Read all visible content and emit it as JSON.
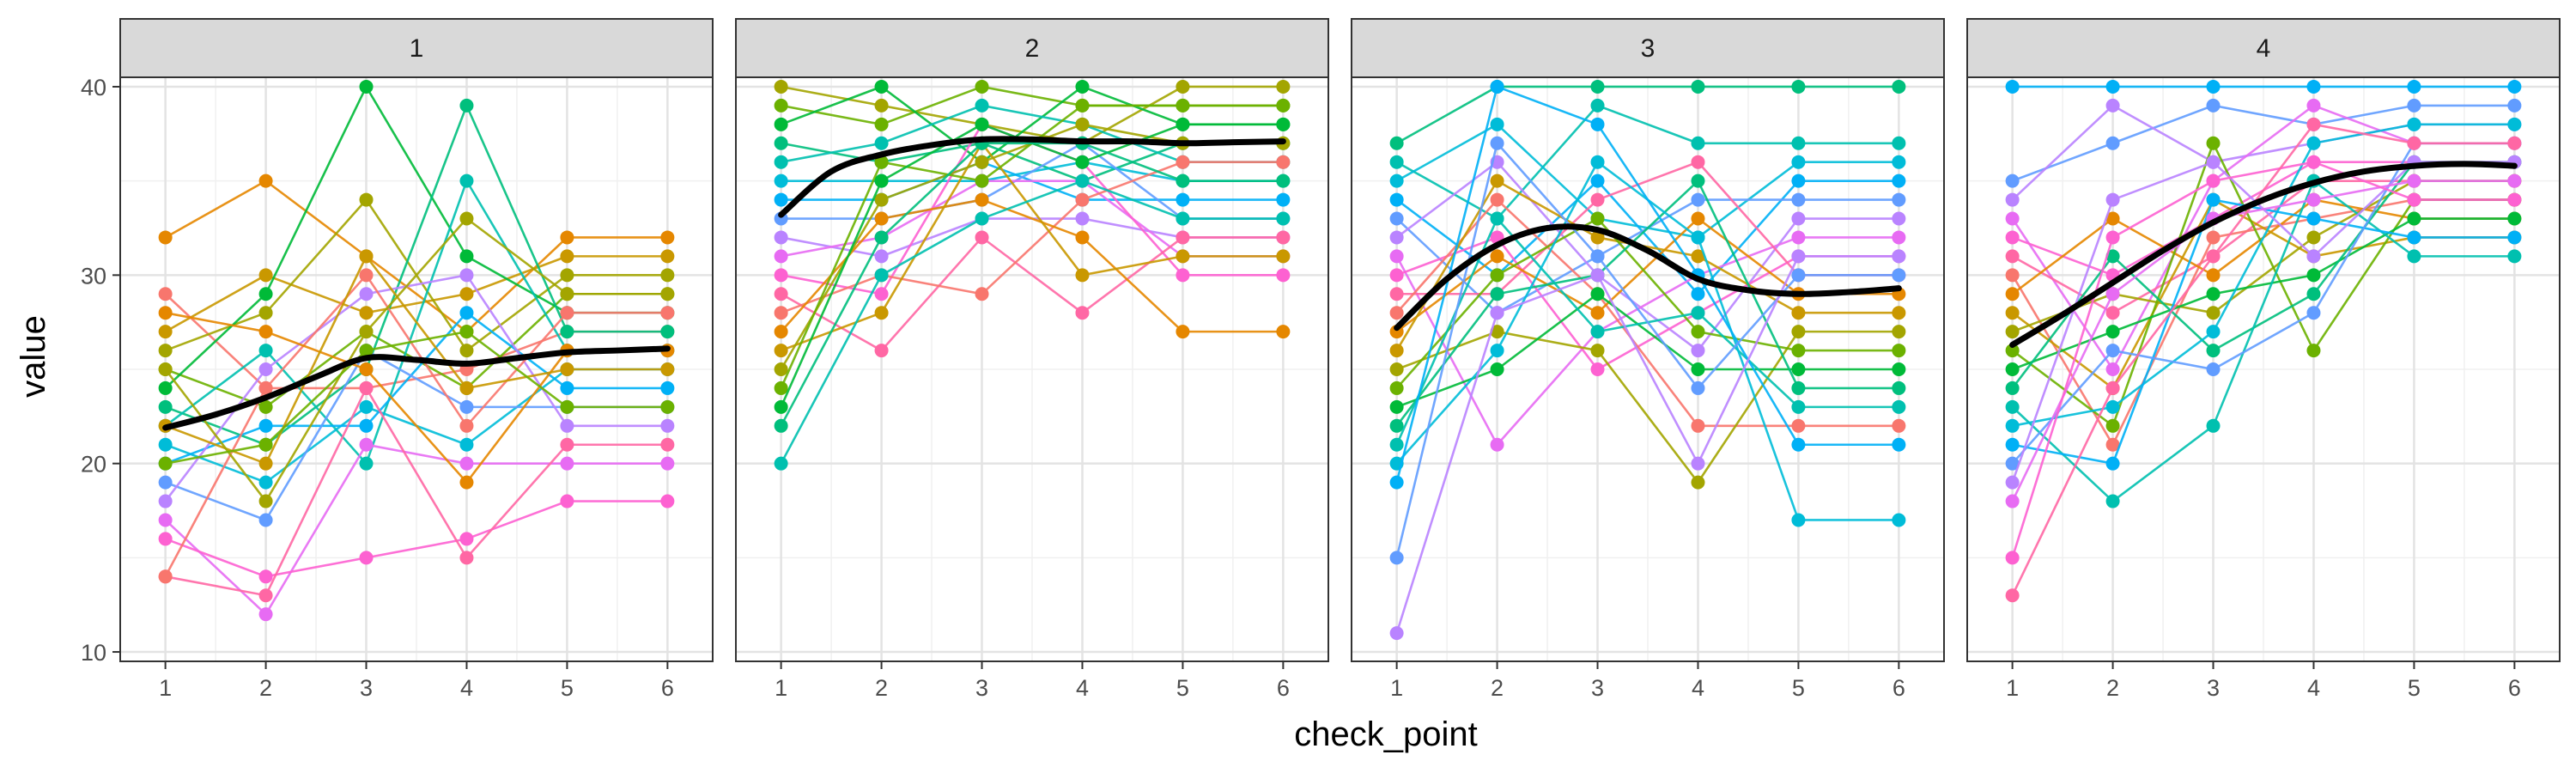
{
  "chart_data": {
    "type": "line",
    "facet_variable": "",
    "xlabel": "check_point",
    "ylabel": "value",
    "x_ticks": [
      1,
      2,
      3,
      4,
      5,
      6
    ],
    "y_ticks": [
      10,
      20,
      30,
      40
    ],
    "xlim": [
      0.55,
      6.45
    ],
    "ylim": [
      9.5,
      40.5
    ],
    "grid": true,
    "legend": "none",
    "smooth_color": "#000000",
    "line_opacity": 0.9,
    "palette": [
      "#F8766D",
      "#E58700",
      "#C99800",
      "#A3A500",
      "#6BB100",
      "#00BA38",
      "#00BF7D",
      "#00C0AF",
      "#00BCD8",
      "#00B0F6",
      "#619CFF",
      "#B983FF",
      "#E76BF3",
      "#FD61D1",
      "#FF67A4"
    ],
    "facets": [
      {
        "label": "1",
        "smooth": [
          [
            1,
            21.9
          ],
          [
            1.5,
            22.6
          ],
          [
            2,
            23.5
          ],
          [
            2.5,
            24.6
          ],
          [
            3,
            25.6
          ],
          [
            3.5,
            25.5
          ],
          [
            4,
            25.3
          ],
          [
            4.5,
            25.6
          ],
          [
            5,
            25.9
          ],
          [
            5.5,
            26.0
          ],
          [
            6,
            26.1
          ]
        ],
        "series": [
          [
            29,
            24,
            24,
            25,
            27,
            27
          ],
          [
            32,
            35,
            31,
            27,
            32,
            32
          ],
          [
            27,
            30,
            28,
            29,
            31,
            31
          ],
          [
            26,
            28,
            34,
            26,
            30,
            30
          ],
          [
            25,
            23,
            27,
            24,
            29,
            29
          ],
          [
            24,
            29,
            40,
            31,
            28,
            28
          ],
          [
            23,
            21,
            25,
            39,
            27,
            27
          ],
          [
            22,
            26,
            20,
            35,
            26,
            26
          ],
          [
            21,
            19,
            23,
            21,
            25,
            25
          ],
          [
            20,
            22,
            22,
            28,
            24,
            24
          ],
          [
            19,
            17,
            26,
            23,
            23,
            23
          ],
          [
            18,
            25,
            29,
            30,
            22,
            22
          ],
          [
            17,
            12,
            21,
            20,
            20,
            20
          ],
          [
            16,
            14,
            15,
            16,
            18,
            18
          ],
          [
            14,
            13,
            24,
            15,
            21,
            21
          ],
          [
            14,
            24,
            30,
            22,
            28,
            28
          ],
          [
            28,
            27,
            25,
            19,
            26,
            26
          ],
          [
            22,
            20,
            31,
            24,
            25,
            25
          ],
          [
            25,
            18,
            27,
            33,
            29,
            29
          ],
          [
            20,
            21,
            26,
            27,
            23,
            23
          ]
        ]
      },
      {
        "label": "2",
        "smooth": [
          [
            1,
            33.2
          ],
          [
            1.5,
            35.5
          ],
          [
            2,
            36.4
          ],
          [
            2.5,
            36.9
          ],
          [
            3,
            37.2
          ],
          [
            3.5,
            37.2
          ],
          [
            4,
            37.1
          ],
          [
            4.5,
            37.1
          ],
          [
            5,
            37.0
          ],
          [
            5.5,
            37.05
          ],
          [
            6,
            37.1
          ]
        ],
        "series": [
          [
            40,
            39,
            38,
            37,
            40,
            40
          ],
          [
            39,
            38,
            40,
            39,
            39,
            39
          ],
          [
            38,
            40,
            36,
            40,
            38,
            38
          ],
          [
            37,
            36,
            37,
            35,
            37,
            37
          ],
          [
            36,
            37,
            39,
            38,
            36,
            36
          ],
          [
            35,
            35,
            35,
            36,
            35,
            35
          ],
          [
            34,
            34,
            36,
            34,
            34,
            34
          ],
          [
            33,
            33,
            34,
            37,
            33,
            33
          ],
          [
            32,
            31,
            33,
            33,
            32,
            32
          ],
          [
            31,
            32,
            35,
            35,
            31,
            31
          ],
          [
            30,
            29,
            38,
            36,
            30,
            30
          ],
          [
            29,
            26,
            32,
            28,
            32,
            32
          ],
          [
            28,
            30,
            29,
            34,
            36,
            36
          ],
          [
            27,
            33,
            34,
            32,
            27,
            27
          ],
          [
            26,
            28,
            37,
            30,
            31,
            31
          ],
          [
            25,
            34,
            36,
            38,
            37,
            37
          ],
          [
            24,
            36,
            35,
            39,
            39,
            39
          ],
          [
            23,
            35,
            38,
            36,
            38,
            38
          ],
          [
            22,
            32,
            37,
            37,
            35,
            35
          ],
          [
            20,
            30,
            33,
            35,
            33,
            33
          ]
        ]
      },
      {
        "label": "3",
        "smooth": [
          [
            1,
            27.2
          ],
          [
            1.5,
            29.8
          ],
          [
            2,
            31.6
          ],
          [
            2.5,
            32.5
          ],
          [
            3,
            32.4
          ],
          [
            3.5,
            31.3
          ],
          [
            4,
            29.8
          ],
          [
            4.5,
            29.2
          ],
          [
            5,
            29.0
          ],
          [
            5.5,
            29.1
          ],
          [
            6,
            29.3
          ]
        ],
        "series": [
          [
            37,
            40,
            40,
            40,
            40,
            40
          ],
          [
            36,
            33,
            39,
            37,
            37,
            37
          ],
          [
            35,
            38,
            33,
            32,
            36,
            36
          ],
          [
            34,
            30,
            35,
            29,
            35,
            35
          ],
          [
            33,
            28,
            31,
            34,
            34,
            34
          ],
          [
            32,
            36,
            30,
            26,
            33,
            33
          ],
          [
            31,
            21,
            27,
            30,
            32,
            32
          ],
          [
            30,
            32,
            25,
            28,
            31,
            31
          ],
          [
            29,
            29,
            34,
            36,
            30,
            30
          ],
          [
            28,
            34,
            29,
            22,
            22,
            22
          ],
          [
            27,
            31,
            28,
            33,
            29,
            29
          ],
          [
            26,
            35,
            32,
            31,
            28,
            28
          ],
          [
            25,
            27,
            26,
            19,
            27,
            27
          ],
          [
            24,
            30,
            33,
            27,
            26,
            26
          ],
          [
            23,
            25,
            29,
            25,
            25,
            25
          ],
          [
            22,
            29,
            30,
            35,
            24,
            24
          ],
          [
            21,
            33,
            27,
            28,
            23,
            23
          ],
          [
            20,
            26,
            36,
            32,
            17,
            17
          ],
          [
            19,
            40,
            38,
            30,
            21,
            21
          ],
          [
            15,
            37,
            31,
            24,
            30,
            30
          ],
          [
            11,
            28,
            30,
            20,
            31,
            31
          ]
        ]
      },
      {
        "label": "4",
        "smooth": [
          [
            1,
            26.3
          ],
          [
            1.5,
            27.9
          ],
          [
            2,
            29.6
          ],
          [
            2.5,
            31.3
          ],
          [
            3,
            32.8
          ],
          [
            3.5,
            34.0
          ],
          [
            4,
            34.9
          ],
          [
            4.5,
            35.5
          ],
          [
            5,
            35.8
          ],
          [
            5.5,
            35.9
          ],
          [
            6,
            35.8
          ]
        ],
        "series": [
          [
            40,
            40,
            40,
            40,
            40,
            40
          ],
          [
            35,
            37,
            39,
            38,
            39,
            39
          ],
          [
            34,
            39,
            36,
            37,
            38,
            38
          ],
          [
            33,
            25,
            35,
            39,
            37,
            37
          ],
          [
            32,
            30,
            33,
            36,
            36,
            36
          ],
          [
            31,
            28,
            31,
            35,
            35,
            35
          ],
          [
            30,
            21,
            32,
            33,
            34,
            34
          ],
          [
            29,
            33,
            30,
            34,
            33,
            33
          ],
          [
            28,
            24,
            34,
            31,
            32,
            32
          ],
          [
            27,
            29,
            28,
            32,
            35,
            35
          ],
          [
            26,
            22,
            37,
            26,
            34,
            34
          ],
          [
            25,
            27,
            29,
            30,
            33,
            33
          ],
          [
            24,
            31,
            26,
            29,
            36,
            36
          ],
          [
            23,
            18,
            22,
            35,
            31,
            31
          ],
          [
            22,
            23,
            27,
            37,
            38,
            38
          ],
          [
            21,
            20,
            34,
            33,
            32,
            32
          ],
          [
            20,
            26,
            25,
            28,
            37,
            37
          ],
          [
            19,
            34,
            36,
            31,
            36,
            36
          ],
          [
            18,
            29,
            33,
            34,
            35,
            35
          ],
          [
            15,
            32,
            35,
            36,
            34,
            34
          ],
          [
            13,
            24,
            31,
            38,
            37,
            37
          ]
        ]
      }
    ]
  }
}
